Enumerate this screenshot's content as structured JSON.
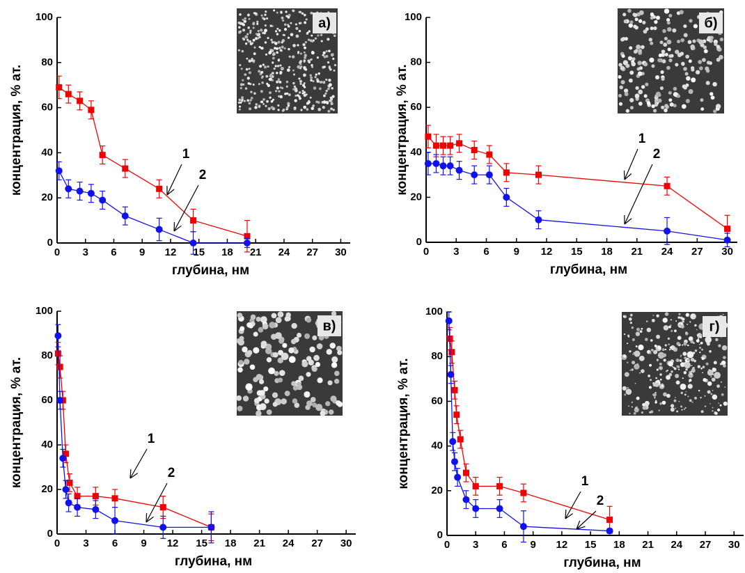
{
  "chart_data": [
    {
      "type": "line",
      "panel_label": "а)",
      "x_label": "глубина, нм",
      "y_label": "концентрация, % ат.",
      "xlim": [
        0,
        31
      ],
      "xticks": [
        0,
        3,
        6,
        9,
        12,
        15,
        18,
        21,
        24,
        27,
        30
      ],
      "ylim": [
        0,
        100
      ],
      "yticks": [
        0,
        20,
        40,
        60,
        80,
        100
      ],
      "series": [
        {
          "name": "1",
          "color": "#ee0000",
          "marker": "square",
          "x": [
            0.2,
            1.2,
            2.4,
            3.6,
            4.8,
            7.2,
            10.8,
            14.4,
            20.1
          ],
          "values": [
            69,
            66,
            63,
            59,
            39,
            33,
            24,
            10,
            3
          ],
          "errors": [
            5,
            4,
            4,
            4,
            4,
            4,
            4,
            5,
            7
          ]
        },
        {
          "name": "2",
          "color": "#1111ee",
          "marker": "circle",
          "x": [
            0.2,
            1.2,
            2.4,
            3.6,
            4.8,
            7.2,
            10.8,
            14.4,
            20.1
          ],
          "values": [
            32,
            24,
            23,
            22,
            19,
            12,
            6,
            0,
            0
          ],
          "errors": [
            4,
            4,
            4,
            4,
            4,
            4,
            5,
            5,
            2
          ]
        }
      ]
    },
    {
      "type": "line",
      "panel_label": "б)",
      "x_label": "глубина, нм",
      "y_label": "концентрация, % ат.",
      "xlim": [
        0,
        31
      ],
      "xticks": [
        0,
        3,
        6,
        9,
        12,
        15,
        18,
        21,
        24,
        27,
        30
      ],
      "ylim": [
        0,
        100
      ],
      "yticks": [
        0,
        20,
        40,
        60,
        80,
        100
      ],
      "series": [
        {
          "name": "1",
          "color": "#ee0000",
          "marker": "square",
          "x": [
            0.2,
            1,
            1.7,
            2.4,
            3.3,
            4.8,
            6.3,
            8,
            11.2,
            24,
            30
          ],
          "values": [
            47,
            43,
            43,
            43,
            44,
            41,
            39,
            31,
            30,
            25,
            6
          ],
          "errors": [
            5,
            5,
            4,
            4,
            4,
            4,
            4,
            4,
            4,
            4,
            6
          ]
        },
        {
          "name": "2",
          "color": "#1111ee",
          "marker": "circle",
          "x": [
            0.2,
            1,
            1.7,
            2.4,
            3.3,
            4.8,
            6.3,
            8,
            11.2,
            24,
            30
          ],
          "values": [
            35,
            35,
            34,
            34,
            32,
            30,
            30,
            20,
            10,
            5,
            1
          ],
          "errors": [
            5,
            4,
            4,
            4,
            4,
            4,
            4,
            4,
            4,
            6,
            3
          ]
        }
      ]
    },
    {
      "type": "line",
      "panel_label": "в)",
      "x_label": "глубина, нм",
      "y_label": "концентрация, % ат.",
      "xlim": [
        0,
        31
      ],
      "xticks": [
        0,
        3,
        6,
        9,
        12,
        15,
        18,
        21,
        24,
        27,
        30
      ],
      "ylim": [
        0,
        100
      ],
      "yticks": [
        0,
        20,
        40,
        60,
        80,
        100
      ],
      "series": [
        {
          "name": "1",
          "color": "#ee0000",
          "marker": "square",
          "x": [
            0.1,
            0.3,
            0.6,
            0.9,
            1.3,
            2.1,
            4,
            6,
            11,
            16
          ],
          "values": [
            81,
            75,
            60,
            36,
            23,
            17,
            17,
            16,
            12,
            3
          ],
          "errors": [
            5,
            5,
            4,
            4,
            4,
            4,
            4,
            4,
            5,
            6
          ]
        },
        {
          "name": "2",
          "color": "#1111ee",
          "marker": "circle",
          "x": [
            0.1,
            0.3,
            0.6,
            0.9,
            1.2,
            2.1,
            4,
            6,
            11,
            16
          ],
          "values": [
            89,
            60,
            34,
            20,
            14,
            12,
            11,
            6,
            3,
            3
          ],
          "errors": [
            5,
            4,
            4,
            4,
            4,
            4,
            4,
            6,
            5,
            7
          ]
        }
      ]
    },
    {
      "type": "line",
      "panel_label": "г)",
      "x_label": "глубина, нм",
      "y_label": "концентрация, % ат.",
      "xlim": [
        0,
        31
      ],
      "xticks": [
        0,
        3,
        6,
        9,
        12,
        15,
        18,
        21,
        24,
        27,
        30
      ],
      "ylim": [
        0,
        100
      ],
      "yticks": [
        0,
        20,
        40,
        60,
        80,
        100
      ],
      "series": [
        {
          "name": "1",
          "color": "#ee0000",
          "marker": "square",
          "x": [
            0.3,
            0.5,
            0.8,
            1,
            1.4,
            2,
            3,
            5.5,
            8,
            17
          ],
          "values": [
            88,
            82,
            65,
            54,
            43,
            28,
            22,
            22,
            19,
            7
          ],
          "errors": [
            5,
            5,
            4,
            4,
            4,
            4,
            4,
            4,
            4,
            6
          ]
        },
        {
          "name": "2",
          "color": "#1111ee",
          "marker": "circle",
          "x": [
            0.2,
            0.4,
            0.6,
            0.8,
            1.1,
            2,
            3,
            5.5,
            8,
            17
          ],
          "values": [
            96,
            72,
            42,
            33,
            26,
            16,
            12,
            12,
            4,
            2
          ],
          "errors": [
            4,
            4,
            4,
            4,
            4,
            4,
            4,
            4,
            7,
            1
          ]
        }
      ]
    }
  ]
}
